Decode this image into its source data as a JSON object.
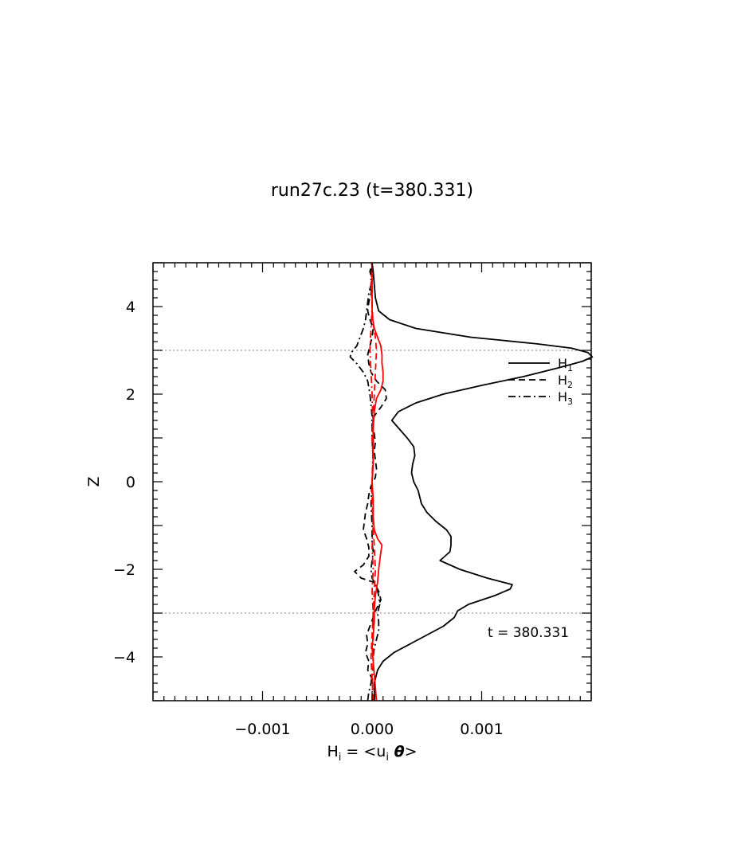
{
  "chart_data": {
    "type": "line",
    "title": "run27c.23 (t=380.331)",
    "xlabel": {
      "main": "H",
      "sub": "i",
      "rest": " = <u",
      "sub2": "i",
      "theta": " θ",
      "end": ">"
    },
    "ylabel": "Z",
    "xlim": [
      -0.002,
      0.002
    ],
    "ylim": [
      -5,
      5
    ],
    "x_tick_labels": [
      {
        "value": -0.001,
        "label": "−0.001"
      },
      {
        "value": 0.0,
        "label": "0.000"
      },
      {
        "value": 0.001,
        "label": "0.001"
      }
    ],
    "y_tick_labels": [
      {
        "value": 4,
        "label": "4"
      },
      {
        "value": 2,
        "label": "2"
      },
      {
        "value": 0,
        "label": "0"
      },
      {
        "value": -2,
        "label": "−2"
      },
      {
        "value": -4,
        "label": "−4"
      }
    ],
    "reference_lines_z": [
      3,
      -3
    ],
    "annotation": "t = 380.331",
    "legend_placement": "right, near top",
    "series": [
      {
        "name": "H₁",
        "legend_main": "H",
        "legend_sub": "1",
        "style": "solid",
        "color": "#000000",
        "points": [
          [
            -5.0,
            2e-05
          ],
          [
            -4.6,
            2e-05
          ],
          [
            -4.3,
            5e-05
          ],
          [
            -4.1,
            0.0001
          ],
          [
            -3.9,
            0.0002
          ],
          [
            -3.7,
            0.00035
          ],
          [
            -3.5,
            0.0005
          ],
          [
            -3.3,
            0.00065
          ],
          [
            -3.1,
            0.00075
          ],
          [
            -2.95,
            0.00078
          ],
          [
            -2.8,
            0.00088
          ],
          [
            -2.6,
            0.00112
          ],
          [
            -2.45,
            0.00126
          ],
          [
            -2.35,
            0.00128
          ],
          [
            -2.2,
            0.00105
          ],
          [
            -2.0,
            0.0008
          ],
          [
            -1.8,
            0.00062
          ],
          [
            -1.6,
            0.00071
          ],
          [
            -1.45,
            0.00072
          ],
          [
            -1.25,
            0.00072
          ],
          [
            -1.1,
            0.00068
          ],
          [
            -0.9,
            0.00058
          ],
          [
            -0.7,
            0.0005
          ],
          [
            -0.5,
            0.00045
          ],
          [
            -0.2,
            0.00042
          ],
          [
            0.0,
            0.00038
          ],
          [
            0.2,
            0.00036
          ],
          [
            0.4,
            0.00037
          ],
          [
            0.6,
            0.00039
          ],
          [
            0.8,
            0.00038
          ],
          [
            1.0,
            0.00032
          ],
          [
            1.2,
            0.00025
          ],
          [
            1.4,
            0.00018
          ],
          [
            1.6,
            0.00024
          ],
          [
            1.8,
            0.0004
          ],
          [
            2.0,
            0.00065
          ],
          [
            2.2,
            0.001
          ],
          [
            2.4,
            0.00138
          ],
          [
            2.6,
            0.0017
          ],
          [
            2.75,
            0.00192
          ],
          [
            2.85,
            0.00201
          ],
          [
            2.95,
            0.00197
          ],
          [
            3.05,
            0.00182
          ],
          [
            3.15,
            0.0015
          ],
          [
            3.3,
            0.0009
          ],
          [
            3.5,
            0.0004
          ],
          [
            3.7,
            0.00016
          ],
          [
            3.9,
            6e-05
          ],
          [
            4.2,
            3e-05
          ],
          [
            4.5,
            2e-05
          ],
          [
            4.8,
            1e-05
          ],
          [
            5.0,
            0.0
          ]
        ]
      },
      {
        "name": "H₂",
        "legend_main": "H",
        "legend_sub": "2",
        "style": "dashed",
        "color": "#000000",
        "points": [
          [
            -5.0,
            2e-05
          ],
          [
            -4.7,
            3e-05
          ],
          [
            -4.5,
            0.0
          ],
          [
            -4.3,
            -4e-05
          ],
          [
            -4.1,
            -3e-05
          ],
          [
            -3.9,
            -6e-05
          ],
          [
            -3.7,
            -4e-05
          ],
          [
            -3.5,
            -5e-05
          ],
          [
            -3.3,
            -2e-05
          ],
          [
            -3.1,
            1e-05
          ],
          [
            -2.9,
            4e-05
          ],
          [
            -2.7,
            8e-05
          ],
          [
            -2.5,
            6e-05
          ],
          [
            -2.3,
            2e-05
          ],
          [
            -2.2,
            -0.0001
          ],
          [
            -2.05,
            -0.00016
          ],
          [
            -1.9,
            -8e-05
          ],
          [
            -1.7,
            -3e-05
          ],
          [
            -1.5,
            -3e-05
          ],
          [
            -1.3,
            -5e-05
          ],
          [
            -1.1,
            -8e-05
          ],
          [
            -0.9,
            -7e-05
          ],
          [
            -0.7,
            -6e-05
          ],
          [
            -0.5,
            -4e-05
          ],
          [
            -0.3,
            -3e-05
          ],
          [
            -0.1,
            -1e-05
          ],
          [
            0.1,
            3e-05
          ],
          [
            0.3,
            4e-05
          ],
          [
            0.5,
            3e-05
          ],
          [
            0.7,
            2e-05
          ],
          [
            0.9,
            3e-05
          ],
          [
            1.1,
            2e-05
          ],
          [
            1.3,
            0.0
          ],
          [
            1.5,
            2e-05
          ],
          [
            1.7,
            8e-05
          ],
          [
            1.9,
            0.00013
          ],
          [
            2.1,
            0.00012
          ],
          [
            2.3,
            4e-05
          ],
          [
            2.5,
            -1e-05
          ],
          [
            2.7,
            -3e-05
          ],
          [
            2.9,
            -4e-05
          ],
          [
            3.1,
            -2e-05
          ],
          [
            3.3,
            0.0
          ],
          [
            3.5,
            1e-05
          ],
          [
            3.7,
            -2e-05
          ],
          [
            3.9,
            -4e-05
          ],
          [
            4.1,
            -3e-05
          ],
          [
            4.3,
            -1e-05
          ],
          [
            4.6,
            0.0
          ],
          [
            4.8,
            -2e-05
          ],
          [
            5.0,
            0.0
          ]
        ]
      },
      {
        "name": "H₃",
        "legend_main": "H",
        "legend_sub": "3",
        "style": "dashdot",
        "color": "#000000",
        "points": [
          [
            -5.0,
            -4e-05
          ],
          [
            -4.8,
            -3e-05
          ],
          [
            -4.6,
            -1e-05
          ],
          [
            -4.4,
            0.0
          ],
          [
            -4.2,
            1e-05
          ],
          [
            -4.0,
            1e-05
          ],
          [
            -3.8,
            2e-05
          ],
          [
            -3.6,
            4e-05
          ],
          [
            -3.4,
            6e-05
          ],
          [
            -3.2,
            6e-05
          ],
          [
            -3.0,
            5e-05
          ],
          [
            -2.8,
            7e-05
          ],
          [
            -2.6,
            6e-05
          ],
          [
            -2.4,
            4e-05
          ],
          [
            -2.2,
            0.0
          ],
          [
            -2.0,
            -1e-05
          ],
          [
            -1.8,
            0.0
          ],
          [
            -1.6,
            1e-05
          ],
          [
            -1.4,
            0.0
          ],
          [
            -1.0,
            0.0
          ],
          [
            -0.5,
            -1e-05
          ],
          [
            0.0,
            0.0
          ],
          [
            0.5,
            1e-05
          ],
          [
            1.0,
            0.0
          ],
          [
            1.5,
            0.0
          ],
          [
            2.0,
            -2e-05
          ],
          [
            2.3,
            -4e-05
          ],
          [
            2.5,
            -8e-05
          ],
          [
            2.7,
            -0.00014
          ],
          [
            2.85,
            -0.0002
          ],
          [
            2.95,
            -0.00019
          ],
          [
            3.1,
            -0.00014
          ],
          [
            3.3,
            -0.00011
          ],
          [
            3.5,
            -8e-05
          ],
          [
            3.7,
            -6e-05
          ],
          [
            3.9,
            -5e-05
          ],
          [
            4.1,
            -4e-05
          ],
          [
            4.3,
            -3e-05
          ],
          [
            4.5,
            -1e-05
          ],
          [
            4.7,
            -1e-05
          ],
          [
            5.0,
            0.0
          ]
        ]
      },
      {
        "name": "red solid",
        "style": "solid",
        "color": "#ff0000",
        "points": [
          [
            -5.0,
            4e-05
          ],
          [
            -4.7,
            3e-05
          ],
          [
            -4.4,
            2e-05
          ],
          [
            -4.1,
            1e-05
          ],
          [
            -3.8,
            0.0
          ],
          [
            -3.5,
            1e-05
          ],
          [
            -3.2,
            2e-05
          ],
          [
            -2.9,
            2e-05
          ],
          [
            -2.6,
            3e-05
          ],
          [
            -2.3,
            5e-05
          ],
          [
            -2.0,
            6e-05
          ],
          [
            -1.8,
            7e-05
          ],
          [
            -1.6,
            8e-05
          ],
          [
            -1.45,
            9e-05
          ],
          [
            -1.3,
            5e-05
          ],
          [
            -1.1,
            2e-05
          ],
          [
            -0.8,
            1e-05
          ],
          [
            -0.4,
            1e-05
          ],
          [
            0.0,
            0.0
          ],
          [
            0.4,
            1e-05
          ],
          [
            0.8,
            1e-05
          ],
          [
            1.2,
            1e-05
          ],
          [
            1.6,
            2e-05
          ],
          [
            1.9,
            4e-05
          ],
          [
            2.1,
            8e-05
          ],
          [
            2.3,
            0.0001
          ],
          [
            2.5,
            0.0001
          ],
          [
            2.7,
            9e-05
          ],
          [
            2.9,
            9e-05
          ],
          [
            3.1,
            8e-05
          ],
          [
            3.3,
            5e-05
          ],
          [
            3.5,
            2e-05
          ],
          [
            3.8,
            0.0
          ],
          [
            4.2,
            0.0
          ],
          [
            4.6,
            0.0
          ],
          [
            5.0,
            0.0
          ]
        ]
      },
      {
        "name": "red dashed",
        "style": "dashed",
        "color": "#ff0000",
        "points": [
          [
            -5.0,
            1e-05
          ],
          [
            -4.5,
            0.0
          ],
          [
            -4.0,
            -1e-05
          ],
          [
            -3.5,
            0.0
          ],
          [
            -3.0,
            1e-05
          ],
          [
            -2.5,
            2e-05
          ],
          [
            -2.0,
            3e-05
          ],
          [
            -1.5,
            2e-05
          ],
          [
            -1.0,
            1e-05
          ],
          [
            -0.5,
            0.0
          ],
          [
            0.0,
            0.0
          ],
          [
            0.5,
            1e-05
          ],
          [
            1.0,
            0.0
          ],
          [
            1.5,
            1e-05
          ],
          [
            2.0,
            2e-05
          ],
          [
            2.5,
            3e-05
          ],
          [
            3.0,
            4e-05
          ],
          [
            3.3,
            3e-05
          ],
          [
            3.6,
            1e-05
          ],
          [
            4.0,
            0.0
          ],
          [
            4.5,
            -1e-05
          ],
          [
            5.0,
            0.0
          ]
        ]
      },
      {
        "name": "red dashdot",
        "style": "dashdot",
        "color": "#ff0000",
        "points": [
          [
            -5.0,
            0.0
          ],
          [
            -4.0,
            1e-05
          ],
          [
            -3.0,
            1e-05
          ],
          [
            -2.5,
            0.0
          ],
          [
            -2.0,
            1e-05
          ],
          [
            -1.5,
            0.0
          ],
          [
            -1.0,
            1e-05
          ],
          [
            0.0,
            0.0
          ],
          [
            1.0,
            1e-05
          ],
          [
            2.0,
            0.0
          ],
          [
            2.5,
            -1e-05
          ],
          [
            3.0,
            -2e-05
          ],
          [
            3.5,
            -1e-05
          ],
          [
            4.0,
            0.0
          ],
          [
            5.0,
            0.0
          ]
        ]
      }
    ]
  }
}
